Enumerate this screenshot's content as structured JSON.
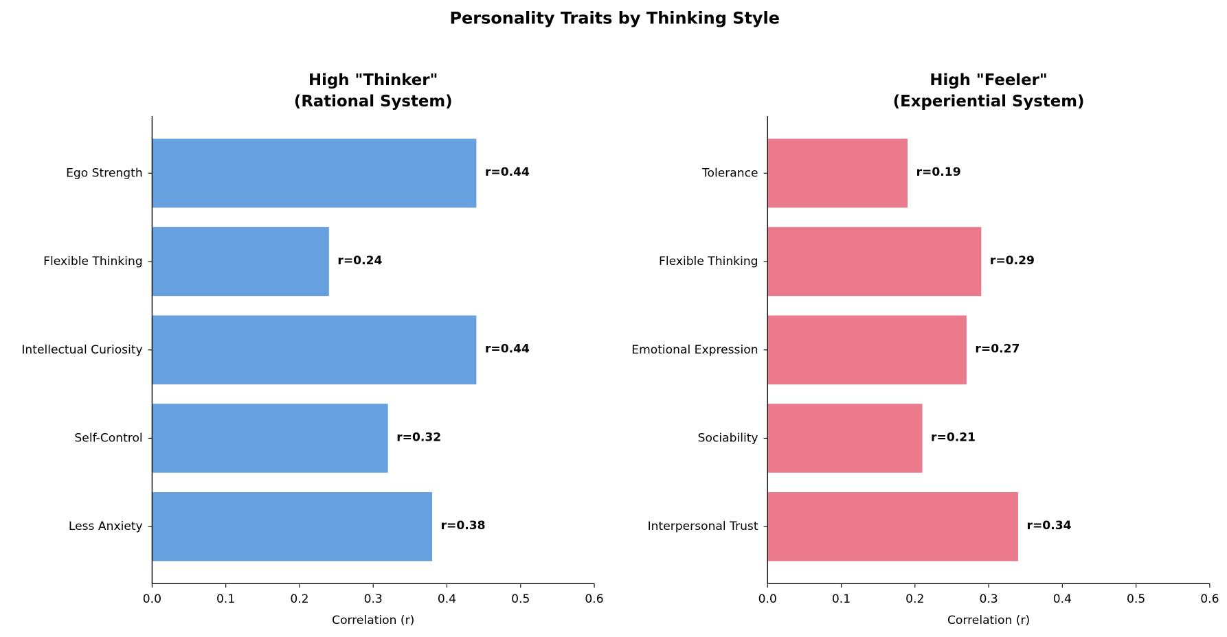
{
  "title": "Personality Traits by Thinking Style",
  "chart_data": [
    {
      "type": "bar",
      "orientation": "horizontal",
      "title": [
        "High \"Thinker\"",
        "(Rational System)"
      ],
      "title_color": "#4a8fdb",
      "categories": [
        "Ego Strength",
        "Flexible Thinking",
        "Intellectual Curiosity",
        "Self-Control",
        "Less Anxiety"
      ],
      "values": [
        0.44,
        0.24,
        0.44,
        0.32,
        0.38
      ],
      "value_labels": [
        "r=0.44",
        "r=0.24",
        "r=0.44",
        "r=0.32",
        "r=0.38"
      ],
      "color": "#66a0de",
      "xlabel": "Correlation (r)",
      "xlim": [
        0,
        0.6
      ],
      "xticks": [
        {
          "value": 0,
          "label": "0.0"
        },
        0.1,
        0.2,
        0.3,
        0.4,
        0.5,
        0.6
      ],
      "grid": false
    },
    {
      "type": "bar",
      "orientation": "horizontal",
      "title": [
        "High \"Feeler\"",
        "(Experiential System)"
      ],
      "title_color": "#e25f7a",
      "categories": [
        "Tolerance",
        "Flexible Thinking",
        "Emotional Expression",
        "Sociability",
        "Interpersonal Trust"
      ],
      "values": [
        0.19,
        0.29,
        0.27,
        0.21,
        0.34
      ],
      "value_labels": [
        "r=0.19",
        "r=0.29",
        "r=0.27",
        "r=0.21",
        "r=0.34"
      ],
      "color": "#eb7a8c",
      "xlabel": "Correlation (r)",
      "xlim": [
        0,
        0.6
      ],
      "xticks": [
        {
          "value": 0,
          "label": "0.0"
        },
        0.1,
        0.2,
        0.3,
        0.4,
        0.5,
        0.6
      ],
      "grid": false
    }
  ]
}
